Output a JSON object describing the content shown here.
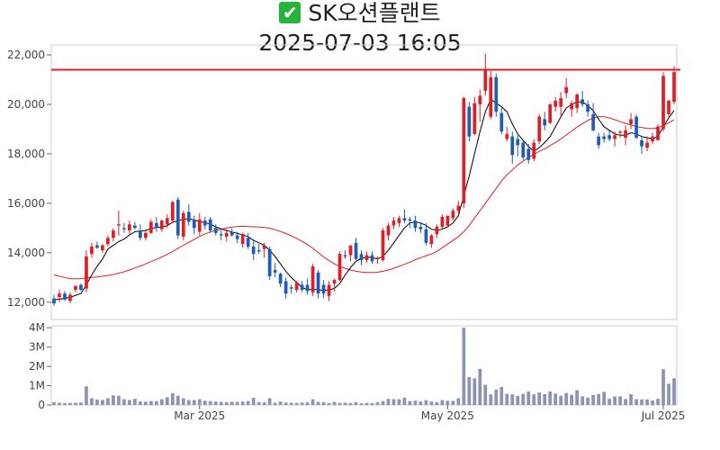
{
  "header": {
    "check_icon": "✔",
    "stock_name": "SK오션플랜트",
    "datetime": "2025-07-03 16:05"
  },
  "colors": {
    "up": "#e01e26",
    "down": "#1f5cb5",
    "ma_short": "#000000",
    "ma_long": "#e01e26",
    "reference_line": "#e01e26",
    "volume": "#8a94b4"
  },
  "chart_data": [
    {
      "type": "candlestick",
      "title": "",
      "y_ticks": [
        12000,
        14000,
        16000,
        18000,
        20000,
        22000
      ],
      "y_tick_labels": [
        "12,000",
        "14,000",
        "16,000",
        "18,000",
        "20,000",
        "22,000"
      ],
      "ylim": [
        11300,
        22400
      ],
      "reference_line": 21400,
      "grid": false,
      "ohlc": [
        [
          12150,
          12300,
          11850,
          11950
        ],
        [
          12200,
          12500,
          12000,
          12350
        ],
        [
          12350,
          12450,
          12050,
          12100
        ],
        [
          12050,
          12400,
          11950,
          12300
        ],
        [
          12500,
          12700,
          12400,
          12650
        ],
        [
          12700,
          12750,
          12450,
          12500
        ],
        [
          12550,
          14100,
          12400,
          13850
        ],
        [
          13950,
          14400,
          13800,
          14250
        ],
        [
          14300,
          14450,
          14150,
          14200
        ],
        [
          14100,
          14350,
          14000,
          14300
        ],
        [
          14350,
          14700,
          14250,
          14600
        ],
        [
          14600,
          15000,
          14450,
          14900
        ],
        [
          15100,
          15700,
          14700,
          15150
        ],
        [
          15000,
          15200,
          14800,
          14950
        ],
        [
          14900,
          15300,
          14750,
          15150
        ],
        [
          15100,
          15250,
          14950,
          15000
        ],
        [
          14900,
          15150,
          14500,
          14600
        ],
        [
          14600,
          14950,
          14500,
          14800
        ],
        [
          14800,
          15350,
          14750,
          15250
        ],
        [
          15200,
          15450,
          14850,
          15050
        ],
        [
          14950,
          15350,
          14850,
          15300
        ],
        [
          15150,
          15550,
          15000,
          15400
        ],
        [
          15300,
          16100,
          15200,
          16050
        ],
        [
          16150,
          16250,
          14550,
          14700
        ],
        [
          14650,
          15700,
          14500,
          15600
        ],
        [
          15650,
          15950,
          15100,
          15250
        ],
        [
          15300,
          15500,
          14750,
          15000
        ],
        [
          14850,
          15600,
          14700,
          15350
        ],
        [
          15300,
          15450,
          14950,
          15100
        ],
        [
          15350,
          15450,
          14800,
          14900
        ],
        [
          15000,
          15150,
          14700,
          14800
        ],
        [
          14750,
          14900,
          14500,
          14700
        ],
        [
          14650,
          14950,
          14450,
          14800
        ],
        [
          14850,
          15000,
          14650,
          14700
        ],
        [
          14700,
          14850,
          14400,
          14550
        ],
        [
          14350,
          14800,
          14200,
          14750
        ],
        [
          14600,
          14800,
          14150,
          14250
        ],
        [
          14250,
          14550,
          13700,
          13950
        ],
        [
          14100,
          14350,
          13950,
          14050
        ],
        [
          14150,
          14400,
          13800,
          14300
        ],
        [
          14150,
          14250,
          12900,
          13050
        ],
        [
          13300,
          13600,
          13000,
          13200
        ],
        [
          13150,
          13200,
          12600,
          12750
        ],
        [
          12850,
          13000,
          12150,
          12350
        ],
        [
          12600,
          12700,
          12350,
          12550
        ],
        [
          12500,
          12850,
          12400,
          12800
        ],
        [
          12700,
          12850,
          12400,
          12500
        ],
        [
          12700,
          12950,
          12300,
          12450
        ],
        [
          12400,
          13550,
          12250,
          13450
        ],
        [
          13200,
          13300,
          12150,
          12350
        ],
        [
          12700,
          12900,
          12150,
          12350
        ],
        [
          12250,
          12850,
          12050,
          12700
        ],
        [
          12750,
          12950,
          12450,
          12900
        ],
        [
          12900,
          14050,
          12850,
          13950
        ],
        [
          13900,
          14100,
          13750,
          13850
        ],
        [
          13900,
          14200,
          13650,
          14300
        ],
        [
          14400,
          14600,
          13700,
          13750
        ],
        [
          13950,
          14100,
          13500,
          13700
        ],
        [
          13700,
          14050,
          13600,
          13900
        ],
        [
          13900,
          14050,
          13550,
          13650
        ],
        [
          13750,
          13850,
          13550,
          13800
        ],
        [
          13700,
          15000,
          13650,
          14900
        ],
        [
          14700,
          15200,
          14500,
          15100
        ],
        [
          15100,
          15450,
          14950,
          15300
        ],
        [
          15200,
          15500,
          15050,
          15400
        ],
        [
          15400,
          15750,
          15200,
          15300
        ],
        [
          15350,
          15450,
          15000,
          15300
        ],
        [
          15300,
          15500,
          14850,
          15000
        ],
        [
          15050,
          15200,
          14800,
          14950
        ],
        [
          14950,
          15200,
          14300,
          14400
        ],
        [
          14350,
          14750,
          14200,
          14700
        ],
        [
          14750,
          15150,
          14600,
          15050
        ],
        [
          15050,
          15550,
          14950,
          15450
        ],
        [
          15100,
          15500,
          15050,
          15500
        ],
        [
          15400,
          15800,
          15300,
          15700
        ],
        [
          15700,
          16100,
          15550,
          15900
        ],
        [
          16000,
          20300,
          15800,
          20250
        ],
        [
          19900,
          20100,
          18500,
          18700
        ],
        [
          18800,
          20300,
          18750,
          20050
        ],
        [
          20000,
          20600,
          19300,
          20350
        ],
        [
          20550,
          22050,
          20350,
          21400
        ],
        [
          19500,
          21350,
          19400,
          21100
        ],
        [
          21100,
          21250,
          19500,
          19700
        ],
        [
          19650,
          19850,
          18800,
          18900
        ],
        [
          18600,
          19100,
          18500,
          18800
        ],
        [
          18700,
          18900,
          17600,
          17950
        ],
        [
          18600,
          18750,
          17900,
          18350
        ],
        [
          18450,
          18550,
          17750,
          17850
        ],
        [
          18200,
          18400,
          17600,
          17750
        ],
        [
          17800,
          18600,
          17700,
          18450
        ],
        [
          18500,
          19600,
          18400,
          19500
        ],
        [
          19400,
          19700,
          18950,
          19150
        ],
        [
          19250,
          20050,
          19200,
          20000
        ],
        [
          19900,
          20300,
          19700,
          20150
        ],
        [
          19900,
          20500,
          19500,
          20250
        ],
        [
          20450,
          21050,
          20250,
          20700
        ],
        [
          19800,
          20150,
          19500,
          20050
        ],
        [
          19850,
          20450,
          19650,
          20400
        ],
        [
          20200,
          20550,
          19900,
          20000
        ],
        [
          20000,
          20150,
          19500,
          19700
        ],
        [
          19600,
          20050,
          18900,
          18950
        ],
        [
          18700,
          18850,
          18200,
          18350
        ],
        [
          18700,
          18850,
          18450,
          18600
        ],
        [
          18750,
          18950,
          18500,
          18600
        ],
        [
          18600,
          18900,
          18300,
          18750
        ],
        [
          18850,
          18950,
          18650,
          18900
        ],
        [
          18650,
          19150,
          18350,
          18950
        ],
        [
          19200,
          19650,
          19000,
          19400
        ],
        [
          19500,
          19600,
          18600,
          18650
        ],
        [
          18550,
          18700,
          18000,
          18300
        ],
        [
          18250,
          18700,
          18100,
          18450
        ],
        [
          18500,
          18850,
          18400,
          18700
        ],
        [
          18550,
          19200,
          18550,
          19100
        ],
        [
          19000,
          21300,
          18900,
          21150
        ],
        [
          19600,
          20200,
          19500,
          20150
        ],
        [
          20100,
          21550,
          20000,
          21300
        ]
      ],
      "ma_short": [
        12100,
        12120,
        12160,
        12200,
        12280,
        12350,
        12700,
        13100,
        13450,
        13750,
        14150,
        14300,
        14450,
        14550,
        14720,
        14850,
        14880,
        14900,
        14980,
        15020,
        15040,
        15100,
        15230,
        15300,
        15350,
        15380,
        15320,
        15260,
        15220,
        15150,
        15050,
        14960,
        14900,
        14840,
        14780,
        14730,
        14650,
        14500,
        14400,
        14300,
        14100,
        13850,
        13550,
        13250,
        13000,
        12800,
        12600,
        12500,
        12520,
        12500,
        12480,
        12490,
        12560,
        12750,
        13100,
        13400,
        13650,
        13780,
        13820,
        13800,
        13750,
        13850,
        14100,
        14400,
        14700,
        15000,
        15200,
        15250,
        15200,
        15100,
        14950,
        14900,
        14950,
        15050,
        15200,
        15500,
        16300,
        17100,
        18000,
        18900,
        19700,
        20200,
        20050,
        19900,
        19700,
        19200,
        18800,
        18550,
        18300,
        18100,
        18250,
        18450,
        18700,
        19100,
        19500,
        19850,
        20000,
        20100,
        20100,
        19950,
        19750,
        19400,
        19100,
        18950,
        18800,
        18750,
        18750,
        18850,
        18800,
        18700,
        18650,
        18600,
        18700,
        19100,
        19450,
        19750
      ],
      "ma_long": [
        13100,
        13050,
        13000,
        12950,
        12950,
        12950,
        12980,
        13000,
        13020,
        13050,
        13080,
        13120,
        13170,
        13230,
        13300,
        13380,
        13460,
        13550,
        13640,
        13730,
        13830,
        13930,
        14050,
        14180,
        14300,
        14420,
        14540,
        14660,
        14760,
        14840,
        14900,
        14950,
        15000,
        15040,
        15060,
        15070,
        15060,
        15050,
        15040,
        15020,
        14990,
        14930,
        14860,
        14780,
        14680,
        14580,
        14460,
        14330,
        14180,
        14000,
        13830,
        13680,
        13550,
        13450,
        13370,
        13300,
        13250,
        13220,
        13200,
        13200,
        13210,
        13250,
        13300,
        13370,
        13450,
        13530,
        13620,
        13720,
        13800,
        13880,
        13950,
        14050,
        14200,
        14350,
        14500,
        14650,
        14850,
        15100,
        15400,
        15700,
        16000,
        16300,
        16600,
        16900,
        17150,
        17350,
        17550,
        17700,
        17850,
        17980,
        18100,
        18200,
        18330,
        18460,
        18600,
        18760,
        18920,
        19080,
        19220,
        19350,
        19450,
        19500,
        19500,
        19450,
        19380,
        19300,
        19230,
        19170,
        19100,
        19060,
        19030,
        19020,
        19050,
        19150,
        19250,
        19380
      ]
    },
    {
      "type": "bar",
      "title": "",
      "y_ticks": [
        0,
        1000000,
        2000000,
        3000000,
        4000000
      ],
      "y_tick_labels": [
        "0",
        "1M",
        "2M",
        "3M",
        "4M"
      ],
      "ylim": [
        0,
        4100000
      ],
      "x_tick_labels": [
        {
          "index": 27,
          "label": "Mar 2025"
        },
        {
          "index": 73,
          "label": "May 2025"
        },
        {
          "index": 113,
          "label": "Jul 2025"
        }
      ],
      "values": [
        150000,
        120000,
        100000,
        110000,
        120000,
        130000,
        970000,
        350000,
        280000,
        260000,
        350000,
        500000,
        480000,
        300000,
        260000,
        320000,
        180000,
        170000,
        200000,
        200000,
        300000,
        400000,
        600000,
        480000,
        350000,
        260000,
        260000,
        300000,
        220000,
        200000,
        180000,
        160000,
        150000,
        170000,
        160000,
        180000,
        200000,
        370000,
        150000,
        140000,
        350000,
        120000,
        180000,
        130000,
        120000,
        110000,
        130000,
        140000,
        300000,
        160000,
        150000,
        100000,
        160000,
        110000,
        120000,
        100000,
        150000,
        90000,
        110000,
        100000,
        140000,
        200000,
        320000,
        300000,
        300000,
        380000,
        200000,
        220000,
        180000,
        250000,
        180000,
        140000,
        250000,
        220000,
        210000,
        350000,
        4000000,
        1450000,
        1380000,
        1870000,
        1050000,
        550000,
        800000,
        930000,
        570000,
        550000,
        470000,
        580000,
        700000,
        550000,
        650000,
        560000,
        700000,
        590000,
        480000,
        620000,
        530000,
        770000,
        450000,
        380000,
        520000,
        570000,
        680000,
        320000,
        440000,
        450000,
        310000,
        560000,
        300000,
        290000,
        290000,
        230000,
        320000,
        1850000,
        1100000,
        1380000
      ]
    }
  ]
}
